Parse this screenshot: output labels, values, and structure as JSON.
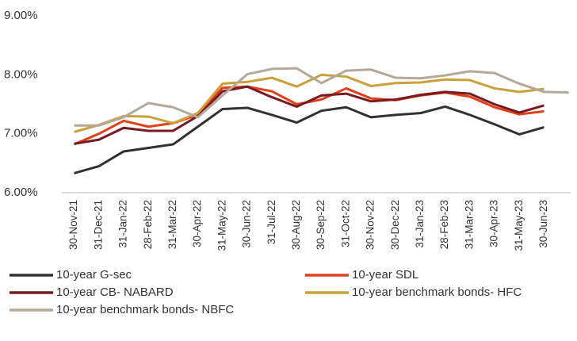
{
  "chart_data": {
    "type": "line",
    "categories": [
      "30-Nov-21",
      "31-Dec-21",
      "31-Jan-22",
      "28-Feb-22",
      "31-Mar-22",
      "30-Apr-22",
      "31-May-22",
      "30-Jun-22",
      "31-Jul-22",
      "30-Aug-22",
      "30-Sep-22",
      "31-Oct-22",
      "30-Nov-22",
      "30-Dec-22",
      "31-Jan-23",
      "28-Feb-23",
      "31-Mar-23",
      "30-Apr-23",
      "31-May-23",
      "30-Jun-23",
      null
    ],
    "series": [
      {
        "name": "10-year G-sec",
        "color": "#2f3133",
        "values": [
          6.33,
          6.45,
          6.7,
          6.76,
          6.82,
          7.12,
          7.42,
          7.44,
          7.32,
          7.19,
          7.39,
          7.45,
          7.28,
          7.32,
          7.35,
          7.46,
          7.32,
          7.16,
          6.99,
          7.11,
          null
        ]
      },
      {
        "name": "10-year SDL",
        "color": "#e0401a",
        "values": [
          6.82,
          7.0,
          7.22,
          7.12,
          7.18,
          7.32,
          7.78,
          7.8,
          7.72,
          7.5,
          7.58,
          7.77,
          7.6,
          7.57,
          7.65,
          7.7,
          7.63,
          7.45,
          7.33,
          7.38,
          null
        ]
      },
      {
        "name": "10-year CB- NABARD",
        "color": "#7a1a1f",
        "values": [
          6.83,
          6.9,
          7.1,
          7.05,
          7.05,
          7.3,
          7.72,
          7.8,
          7.62,
          7.46,
          7.65,
          7.68,
          7.55,
          7.58,
          7.66,
          7.71,
          7.68,
          7.5,
          7.36,
          7.48,
          null
        ]
      },
      {
        "name": "10-year benchmark bonds- HFC",
        "color": "#c9a13a",
        "values": [
          7.03,
          7.15,
          7.3,
          7.29,
          7.18,
          7.35,
          7.85,
          7.88,
          7.95,
          7.8,
          8.0,
          7.97,
          7.81,
          7.86,
          7.87,
          7.92,
          7.91,
          7.77,
          7.71,
          7.76,
          null
        ]
      },
      {
        "name": "10-year benchmark bonds- NBFC",
        "color": "#b5a89a",
        "values": [
          7.14,
          7.14,
          7.28,
          7.52,
          7.45,
          7.28,
          7.65,
          8.01,
          8.1,
          8.11,
          7.86,
          8.07,
          8.09,
          7.95,
          7.94,
          7.99,
          8.06,
          8.03,
          7.85,
          7.71,
          7.7
        ]
      }
    ],
    "ylim": [
      6,
      9
    ],
    "yticks": [
      {
        "value": 6,
        "label": "6.00%"
      },
      {
        "value": 7,
        "label": "7.00%"
      },
      {
        "value": 8,
        "label": "8.00%"
      },
      {
        "value": 9,
        "label": "9.00%"
      }
    ],
    "grid": false,
    "legend": "bottom"
  }
}
